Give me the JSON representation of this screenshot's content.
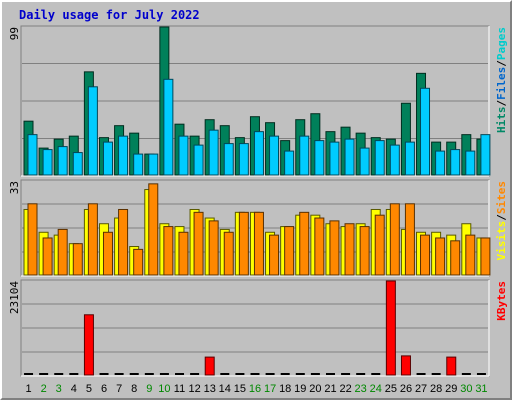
{
  "chart_data": {
    "type": "bar",
    "title": "Daily usage for July 2022",
    "categories": [
      "1",
      "2",
      "3",
      "4",
      "5",
      "6",
      "7",
      "8",
      "9",
      "10",
      "11",
      "12",
      "13",
      "14",
      "15",
      "16",
      "17",
      "18",
      "19",
      "20",
      "21",
      "22",
      "23",
      "24",
      "25",
      "26",
      "27",
      "28",
      "29",
      "30",
      "31"
    ],
    "weekend_days": [
      "2",
      "3",
      "9",
      "10",
      "16",
      "17",
      "23",
      "24",
      "30",
      "31"
    ],
    "panels": [
      {
        "name": "hits-files-pages",
        "ymax_label": "99",
        "ylim": [
          0,
          99
        ],
        "labels": [
          "Pages",
          "Files",
          "Hits"
        ],
        "label_colors": [
          "#00cccc",
          "#0066cc",
          "#008866"
        ],
        "series": [
          {
            "name": "Hits",
            "color": "#00805a",
            "values": [
              36,
              18,
              24,
              26,
              69,
              25,
              33,
              28,
              14,
              99,
              34,
              26,
              37,
              33,
              25,
              39,
              35,
              23,
              37,
              41,
              29,
              32,
              28,
              25,
              24,
              48,
              68,
              22,
              22,
              27,
              24
            ]
          },
          {
            "name": "Files",
            "color": "#00ccff",
            "values": [
              27,
              17,
              19,
              15,
              59,
              22,
              26,
              14,
              14,
              64,
              26,
              20,
              30,
              21,
              21,
              29,
              26,
              16,
              26,
              23,
              22,
              24,
              18,
              23,
              20,
              22,
              58,
              16,
              17,
              16,
              27
            ]
          }
        ]
      },
      {
        "name": "visits-sites",
        "ymax_label": "33",
        "ylim": [
          0,
          33
        ],
        "labels": [
          "Sites",
          "Visits"
        ],
        "label_colors": [
          "#ff8800",
          "#ffff00"
        ],
        "series": [
          {
            "name": "Visits",
            "color": "#ffff00",
            "values": [
              23,
              15,
              14,
              11,
              23,
              18,
              20,
              10,
              30,
              18,
              17,
              23,
              20,
              16,
              22,
              22,
              15,
              17,
              21,
              21,
              18,
              17,
              18,
              23,
              23,
              16,
              15,
              15,
              14,
              18,
              13
            ]
          },
          {
            "name": "Sites",
            "color": "#ff8800",
            "values": [
              25,
              13,
              16,
              11,
              25,
              15,
              23,
              9,
              32,
              17,
              15,
              22,
              19,
              15,
              22,
              22,
              14,
              17,
              22,
              20,
              19,
              18,
              17,
              21,
              25,
              25,
              14,
              13,
              12,
              14,
              13
            ]
          }
        ]
      },
      {
        "name": "kbytes",
        "ymax_label": "23104",
        "ylim": [
          0,
          23104
        ],
        "labels": [
          "KBytes"
        ],
        "label_colors": [
          "#ff0000"
        ],
        "series": [
          {
            "name": "KBytes",
            "color": "#ff0000",
            "values": [
              0,
              0,
              0,
              0,
              14800,
              0,
              0,
              0,
              0,
              0,
              0,
              0,
              4400,
              0,
              0,
              0,
              0,
              0,
              0,
              0,
              0,
              0,
              0,
              0,
              23104,
              4700,
              0,
              0,
              4400,
              0,
              0
            ]
          }
        ]
      }
    ]
  }
}
